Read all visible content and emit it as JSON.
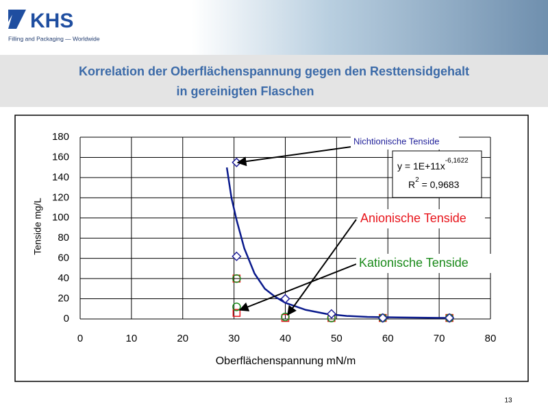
{
  "header": {
    "logo": "KHS",
    "tagline": "Filling and Packaging — Worldwide",
    "title_line1": "Korrelation der Oberflächenspannung gegen den Resttensidgehalt",
    "title_line2": "in gereinigten Flaschen"
  },
  "page_number": "13",
  "chart_data": {
    "type": "scatter",
    "x_label": "Oberflächenspannung mN/m",
    "y_label": "Tenside mg/L",
    "xlim": [
      0,
      80
    ],
    "xticks": [
      0,
      10,
      20,
      30,
      40,
      50,
      60,
      70,
      80
    ],
    "ylim": [
      0,
      180
    ],
    "yticks": [
      0,
      20,
      40,
      60,
      80,
      100,
      120,
      140,
      160,
      180
    ],
    "grid": true,
    "series": [
      {
        "name": "Anionische Tenside",
        "color": "#e8141b",
        "marker": "square",
        "x": [
          30.5,
          30.5,
          40,
          49,
          59,
          72
        ],
        "values": [
          40,
          6,
          1,
          1,
          1,
          1
        ]
      },
      {
        "name": "Kationische Tenside",
        "color": "#1a8a1a",
        "marker": "circle",
        "x": [
          30.5,
          30.5,
          40,
          49,
          59,
          72
        ],
        "values": [
          40,
          12,
          2,
          1,
          1,
          1
        ]
      },
      {
        "name": "Nichtionische Tenside",
        "color": "#1f1f99",
        "marker": "diamond",
        "x": [
          30.5,
          30.5,
          40,
          49,
          59,
          72
        ],
        "values": [
          155,
          62,
          20,
          5,
          1,
          1
        ]
      }
    ],
    "trendline": {
      "color": "#0a1a8c",
      "x": [
        28.6,
        29.5,
        30.5,
        32,
        34,
        36,
        38,
        40,
        44,
        48,
        52,
        56,
        62,
        72
      ],
      "values": [
        150,
        120,
        98,
        70,
        45,
        30,
        22,
        16,
        9,
        5,
        3,
        2,
        1.5,
        1
      ]
    },
    "equation": {
      "lhs": "y = 1E+11x",
      "exponent": "-6,1622",
      "r_base": "R",
      "r_power": "2",
      "r_value": " = 0,9683"
    }
  }
}
